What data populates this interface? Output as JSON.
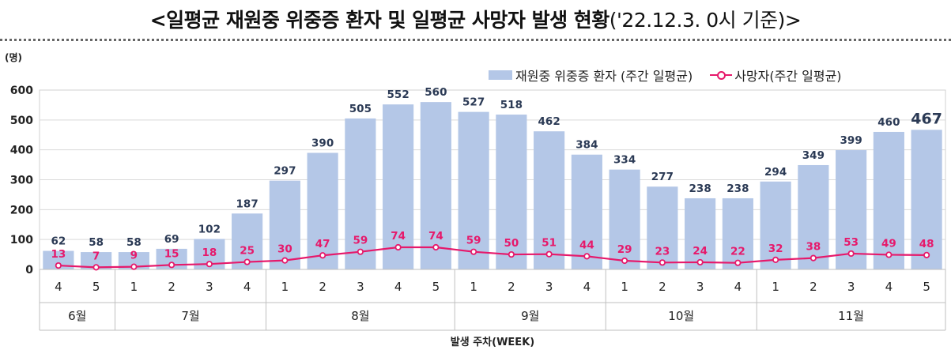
{
  "title": {
    "main": "<일평균 재원중 위중증 환자 및 일평균 사망자 발생 현황",
    "sub": "('22.12.3. 0시 기준)>"
  },
  "colors": {
    "bar": "#b4c7e7",
    "line": "#e6196b",
    "bar_label": "#2b3a55",
    "line_label": "#e6196b"
  },
  "chart_data": {
    "type": "bar",
    "unit_label": "(명)",
    "xlabel": "발생 주차(WEEK)",
    "ylim": [
      0,
      600
    ],
    "yticks": [
      0,
      100,
      200,
      300,
      400,
      500,
      600
    ],
    "grid": true,
    "legend_position": "top-right",
    "categories": [
      "4",
      "5",
      "1",
      "2",
      "3",
      "4",
      "1",
      "2",
      "3",
      "4",
      "5",
      "1",
      "2",
      "3",
      "4",
      "1",
      "2",
      "3",
      "4",
      "1",
      "2",
      "3",
      "4",
      "5"
    ],
    "month_groups": [
      {
        "label": "6월",
        "count": 2
      },
      {
        "label": "7월",
        "count": 4
      },
      {
        "label": "8월",
        "count": 5
      },
      {
        "label": "9월",
        "count": 4
      },
      {
        "label": "10월",
        "count": 4
      },
      {
        "label": "11월",
        "count": 5
      }
    ],
    "series": [
      {
        "name": "재원중 위중증 환자 (주간 일평균)",
        "type": "bar",
        "values": [
          62,
          58,
          58,
          69,
          102,
          187,
          297,
          390,
          505,
          552,
          560,
          527,
          518,
          462,
          384,
          334,
          277,
          238,
          238,
          294,
          349,
          399,
          460,
          467
        ]
      },
      {
        "name": "사망자(주간 일평균)",
        "type": "line",
        "values": [
          13,
          7,
          9,
          15,
          18,
          25,
          30,
          47,
          59,
          74,
          74,
          59,
          50,
          51,
          44,
          29,
          23,
          24,
          22,
          32,
          38,
          53,
          49,
          48
        ]
      }
    ]
  }
}
